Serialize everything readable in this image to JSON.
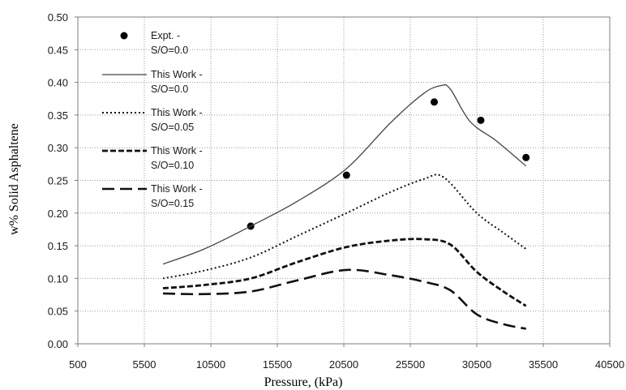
{
  "chart_data": {
    "type": "line",
    "xlabel": "Pressure, (kPa)",
    "ylabel": "w% Solid Asphaltene",
    "xlim": [
      500,
      40500
    ],
    "ylim": [
      0,
      0.5
    ],
    "x_ticks": [
      "500",
      "5500",
      "10500",
      "15500",
      "20500",
      "25500",
      "30500",
      "35500",
      "40500"
    ],
    "y_ticks": [
      "0.00",
      "0.05",
      "0.10",
      "0.15",
      "0.20",
      "0.25",
      "0.30",
      "0.35",
      "0.40",
      "0.45",
      "0.50"
    ],
    "grid": true,
    "legend_position": "top-left",
    "series": [
      {
        "legend": [
          "Expt. -",
          "S/O=0.0"
        ],
        "style": "markers",
        "x": [
          13500,
          20700,
          27300,
          30800,
          34200
        ],
        "y": [
          0.18,
          0.258,
          0.37,
          0.342,
          0.285
        ]
      },
      {
        "legend": [
          "This Work -",
          "S/O=0.0"
        ],
        "style": "solid",
        "x": [
          6900,
          10000,
          13500,
          17000,
          20700,
          24000,
          26500,
          27800,
          28500,
          30000,
          32000,
          34200
        ],
        "y": [
          0.122,
          0.145,
          0.18,
          0.218,
          0.268,
          0.338,
          0.383,
          0.395,
          0.39,
          0.34,
          0.31,
          0.272
        ]
      },
      {
        "legend": [
          "This Work -",
          "S/O=0.05"
        ],
        "style": "dotted",
        "x": [
          6900,
          10000,
          13500,
          17000,
          20700,
          24000,
          26500,
          28000,
          30500,
          32500,
          34200
        ],
        "y": [
          0.1,
          0.112,
          0.132,
          0.165,
          0.2,
          0.232,
          0.252,
          0.255,
          0.2,
          0.17,
          0.145
        ]
      },
      {
        "legend": [
          "This Work -",
          "S/O=0.10"
        ],
        "style": "dashed",
        "x": [
          6900,
          10000,
          13500,
          17000,
          20700,
          24000,
          26500,
          28500,
          30500,
          32500,
          34200
        ],
        "y": [
          0.085,
          0.09,
          0.1,
          0.125,
          0.148,
          0.158,
          0.16,
          0.152,
          0.11,
          0.08,
          0.058
        ]
      },
      {
        "legend": [
          "This Work -",
          "S/O=0.15"
        ],
        "style": "longdash",
        "x": [
          6900,
          10000,
          13500,
          17000,
          20700,
          24000,
          26500,
          28500,
          30500,
          32500,
          34200
        ],
        "y": [
          0.077,
          0.076,
          0.08,
          0.097,
          0.113,
          0.105,
          0.095,
          0.082,
          0.045,
          0.03,
          0.023
        ]
      }
    ]
  }
}
